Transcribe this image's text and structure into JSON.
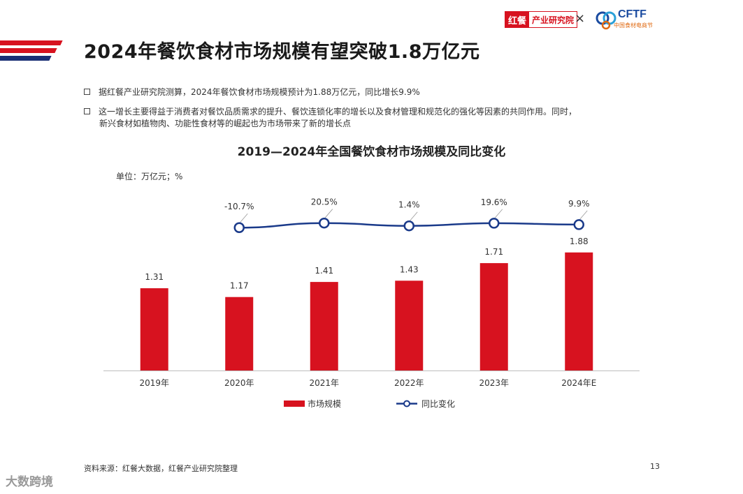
{
  "header": {
    "title": "2024年餐饮食材市场规模有望突破1.8万亿元",
    "logo_red_a": "红餐",
    "logo_red_b": "产业研究院",
    "cross": "×",
    "logo_cftf": "CFTF",
    "logo_cftf_sub": "中国食材电商节"
  },
  "bullets": [
    "据红餐产业研究院测算，2024年餐饮食材市场规模预计为1.88万亿元，同比增长9.9%",
    "这一增长主要得益于消费者对餐饮品质需求的提升、餐饮连锁化率的增长以及食材管理和规范化的强化等因素的共同作用。同时，",
    "新兴食材如植物肉、功能性食材等的崛起也为市场带来了新的增长点"
  ],
  "unit_label": "单位：万亿元；%",
  "footer": {
    "source": "资料来源：红餐大数据，红餐产业研究院整理",
    "page": "13",
    "watermark": "大数跨境"
  },
  "colors": {
    "bar": "#d7121f",
    "line": "#1a3a8a",
    "accent_red": "#d7121f",
    "accent_blue": "#1a2f75"
  },
  "chart_data": {
    "type": "bar",
    "title": "2019—2024年全国餐饮食材市场规模及同比变化",
    "categories": [
      "2019年",
      "2020年",
      "2021年",
      "2022年",
      "2023年",
      "2024年E"
    ],
    "series": [
      {
        "name": "市场规模",
        "type": "bar",
        "values": [
          1.31,
          1.17,
          1.41,
          1.43,
          1.71,
          1.88
        ],
        "labels": [
          "1.31",
          "1.17",
          "1.41",
          "1.43",
          "1.71",
          "1.88"
        ]
      },
      {
        "name": "同比变化",
        "type": "line",
        "values": [
          null,
          -10.7,
          20.5,
          1.4,
          19.6,
          9.9
        ],
        "labels": [
          "",
          "-10.7%",
          "20.5%",
          "1.4%",
          "19.6%",
          "9.9%"
        ]
      }
    ],
    "legend": "bottom",
    "grid": false
  }
}
